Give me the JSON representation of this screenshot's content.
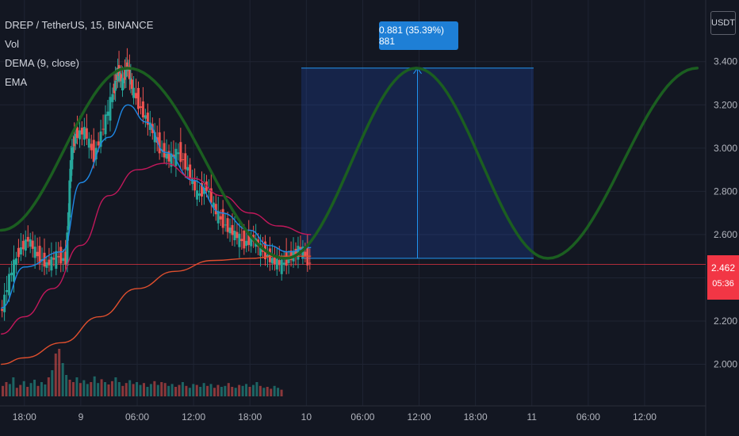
{
  "header": {
    "symbol_line": "DREP / TetherUS, 15, BINANCE",
    "indicators": [
      "Vol",
      "DEMA (9, close)",
      "EMA"
    ]
  },
  "price_axis": {
    "unit": "USDT",
    "current_price": "2.462",
    "countdown": "05:36"
  },
  "measure_tool": {
    "label": "0.881 (35.39%) 881",
    "from_price": 2.49,
    "to_price": 3.37
  },
  "colors": {
    "background": "#131722",
    "up": "#26a69a",
    "down": "#ef5350",
    "dema": "#1e88e5",
    "ema_slow": "#e04f2e",
    "ema_mid": "#c2185b",
    "sine": "#1b5e20",
    "measure": "#2962ff",
    "last_price": "#f23645"
  },
  "chart_data": {
    "type": "line",
    "title": "DREP / TetherUS, 15, BINANCE",
    "y_ticks": [
      2.0,
      2.2,
      2.4,
      2.6,
      2.8,
      3.0,
      3.2,
      3.4
    ],
    "y_tick_labels": [
      "2.000",
      "2.200",
      "2.400",
      "2.600",
      "2.800",
      "3.000",
      "3.200",
      "3.400"
    ],
    "ylim": [
      1.87,
      3.52
    ],
    "x_tick_labels": [
      "18:00",
      "9",
      "06:00",
      "12:00",
      "18:00",
      "10",
      "06:00",
      "12:00",
      "18:00",
      "11",
      "06:00",
      "12:00"
    ],
    "x_tick_hours": [
      0,
      6,
      12,
      18,
      24,
      30,
      36,
      42,
      48,
      54,
      60,
      66
    ],
    "xlim": [
      -2.6,
      72.5
    ],
    "last_price": 2.462,
    "price_close_path": [
      {
        "h": -2.5,
        "p": 2.22
      },
      {
        "h": -1.5,
        "p": 2.4
      },
      {
        "h": -0.5,
        "p": 2.52
      },
      {
        "h": 0.5,
        "p": 2.58
      },
      {
        "h": 1.5,
        "p": 2.5
      },
      {
        "h": 2.5,
        "p": 2.46
      },
      {
        "h": 3.5,
        "p": 2.5
      },
      {
        "h": 4.5,
        "p": 2.48
      },
      {
        "h": 5.0,
        "p": 2.95
      },
      {
        "h": 5.5,
        "p": 3.06
      },
      {
        "h": 6.5,
        "p": 3.08
      },
      {
        "h": 7.5,
        "p": 2.96
      },
      {
        "h": 8.5,
        "p": 3.1
      },
      {
        "h": 9.5,
        "p": 3.25
      },
      {
        "h": 10.0,
        "p": 3.36
      },
      {
        "h": 10.5,
        "p": 3.3
      },
      {
        "h": 11.0,
        "p": 3.38
      },
      {
        "h": 11.5,
        "p": 3.28
      },
      {
        "h": 12.5,
        "p": 3.18
      },
      {
        "h": 13.5,
        "p": 3.1
      },
      {
        "h": 14.5,
        "p": 3.0
      },
      {
        "h": 15.5,
        "p": 2.95
      },
      {
        "h": 16.5,
        "p": 2.98
      },
      {
        "h": 17.5,
        "p": 2.9
      },
      {
        "h": 18.5,
        "p": 2.78
      },
      {
        "h": 19.5,
        "p": 2.82
      },
      {
        "h": 20.5,
        "p": 2.7
      },
      {
        "h": 21.5,
        "p": 2.64
      },
      {
        "h": 22.5,
        "p": 2.6
      },
      {
        "h": 23.5,
        "p": 2.56
      },
      {
        "h": 24.5,
        "p": 2.58
      },
      {
        "h": 25.5,
        "p": 2.52
      },
      {
        "h": 26.5,
        "p": 2.48
      },
      {
        "h": 27.5,
        "p": 2.46
      },
      {
        "h": 28.5,
        "p": 2.5
      },
      {
        "h": 29.5,
        "p": 2.54
      },
      {
        "h": 30.5,
        "p": 2.462
      }
    ],
    "series": [
      {
        "name": "DEMA (9, close)",
        "points": [
          {
            "h": -2.5,
            "p": 2.26
          },
          {
            "h": 0,
            "p": 2.45
          },
          {
            "h": 4,
            "p": 2.52
          },
          {
            "h": 6,
            "p": 2.84
          },
          {
            "h": 9,
            "p": 3.05
          },
          {
            "h": 11,
            "p": 3.2
          },
          {
            "h": 13,
            "p": 3.12
          },
          {
            "h": 15,
            "p": 2.98
          },
          {
            "h": 18,
            "p": 2.85
          },
          {
            "h": 21,
            "p": 2.7
          },
          {
            "h": 24,
            "p": 2.62
          },
          {
            "h": 26,
            "p": 2.55
          },
          {
            "h": 28,
            "p": 2.52
          },
          {
            "h": 30.5,
            "p": 2.54
          }
        ]
      },
      {
        "name": "EMA",
        "points": [
          {
            "h": -2.5,
            "p": 2.14
          },
          {
            "h": 0,
            "p": 2.22
          },
          {
            "h": 3,
            "p": 2.35
          },
          {
            "h": 6,
            "p": 2.55
          },
          {
            "h": 9,
            "p": 2.78
          },
          {
            "h": 12,
            "p": 2.9
          },
          {
            "h": 15,
            "p": 2.93
          },
          {
            "h": 18,
            "p": 2.86
          },
          {
            "h": 21,
            "p": 2.78
          },
          {
            "h": 24,
            "p": 2.7
          },
          {
            "h": 27,
            "p": 2.64
          },
          {
            "h": 30.5,
            "p": 2.6
          }
        ]
      },
      {
        "name": "EMA",
        "points": [
          {
            "h": -2.5,
            "p": 2.0
          },
          {
            "h": 0,
            "p": 2.03
          },
          {
            "h": 4,
            "p": 2.1
          },
          {
            "h": 8,
            "p": 2.22
          },
          {
            "h": 12,
            "p": 2.35
          },
          {
            "h": 16,
            "p": 2.43
          },
          {
            "h": 20,
            "p": 2.48
          },
          {
            "h": 24,
            "p": 2.49
          },
          {
            "h": 27,
            "p": 2.5
          },
          {
            "h": 30.5,
            "p": 2.5
          }
        ]
      }
    ],
    "sine_projection": {
      "low_price": 2.49,
      "peak_price": 3.37,
      "points": [
        {
          "h": -2.5,
          "p": 2.62
        },
        {
          "h": 11.0,
          "p": 3.37
        },
        {
          "h": 27.8,
          "p": 2.49
        },
        {
          "h": 41.7,
          "p": 3.37
        },
        {
          "h": 55.7,
          "p": 2.49
        },
        {
          "h": 71.6,
          "p": 3.37
        }
      ]
    },
    "volume_bars_relative": [
      0.22,
      0.3,
      0.26,
      0.4,
      0.18,
      0.24,
      0.32,
      0.2,
      0.28,
      0.35,
      0.22,
      0.3,
      0.25,
      0.4,
      0.55,
      0.9,
      1.0,
      0.7,
      0.45,
      0.35,
      0.3,
      0.4,
      0.28,
      0.34,
      0.26,
      0.3,
      0.42,
      0.28,
      0.36,
      0.3,
      0.25,
      0.32,
      0.4,
      0.3,
      0.22,
      0.28,
      0.34,
      0.26,
      0.3,
      0.24,
      0.28,
      0.2,
      0.26,
      0.32,
      0.24,
      0.3,
      0.28,
      0.22,
      0.26,
      0.2,
      0.24,
      0.3,
      0.22,
      0.18,
      0.26,
      0.24,
      0.2,
      0.28,
      0.22,
      0.26,
      0.18,
      0.24,
      0.2,
      0.22,
      0.28,
      0.2,
      0.18,
      0.24,
      0.22,
      0.26,
      0.2,
      0.24,
      0.3,
      0.22,
      0.18,
      0.2,
      0.16,
      0.22,
      0.18,
      0.14
    ]
  }
}
